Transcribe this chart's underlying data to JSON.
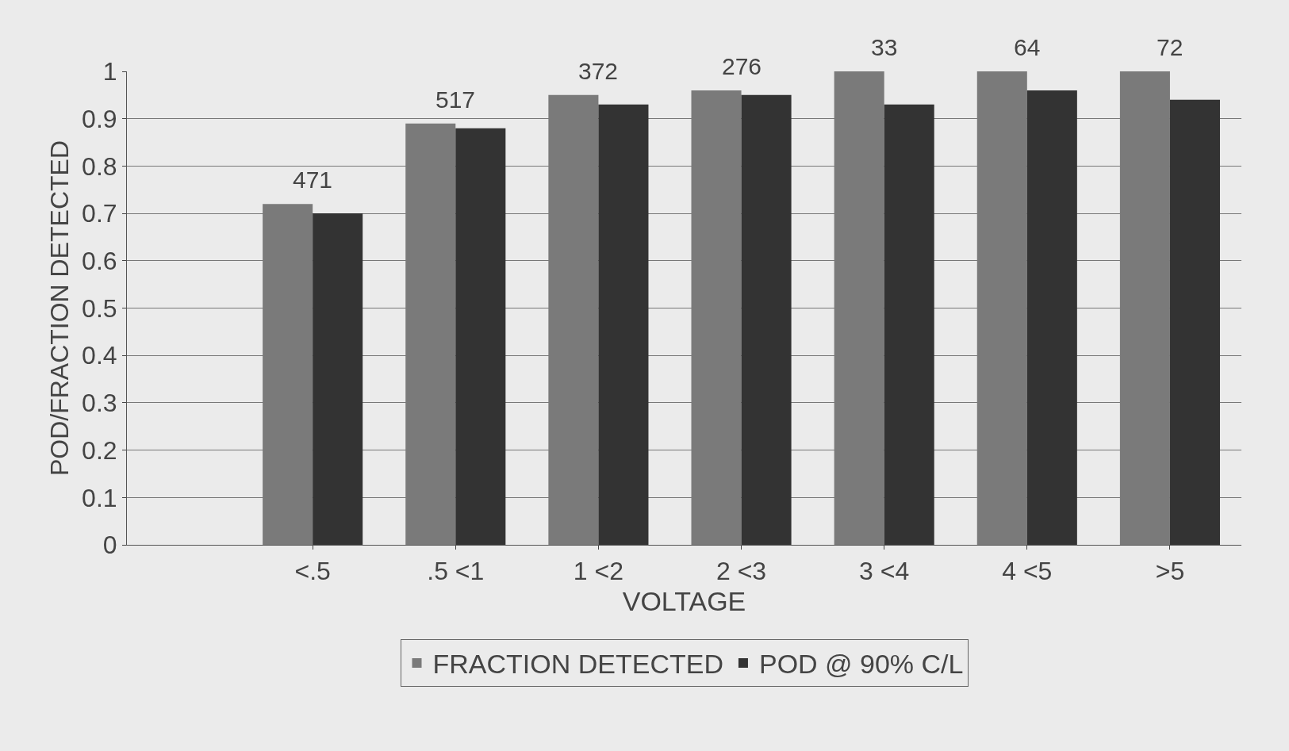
{
  "chart_data": {
    "type": "bar",
    "xlabel": "VOLTAGE",
    "ylabel": "POD/FRACTION DETECTED",
    "categories": [
      "<.5",
      ".5 <1",
      "1 <2",
      "2 <3",
      "3 <4",
      "4 <5",
      ">5"
    ],
    "series": [
      {
        "name": "FRACTION DETECTED",
        "color": "#7a7a7a",
        "values": [
          0.72,
          0.89,
          0.95,
          0.96,
          1.0,
          1.0,
          1.0
        ]
      },
      {
        "name": "POD @ 90% C/L",
        "color": "#333333",
        "values": [
          0.7,
          0.88,
          0.93,
          0.95,
          0.93,
          0.96,
          0.94
        ]
      }
    ],
    "annotations": [
      "471",
      "517",
      "372",
      "276",
      "33",
      "64",
      "72"
    ],
    "ylim": [
      0,
      1
    ],
    "yticks": [
      0,
      0.1,
      0.2,
      0.3,
      0.4,
      0.5,
      0.6,
      0.7,
      0.8,
      0.9,
      1
    ],
    "grid": "y",
    "legend": "bottom"
  }
}
